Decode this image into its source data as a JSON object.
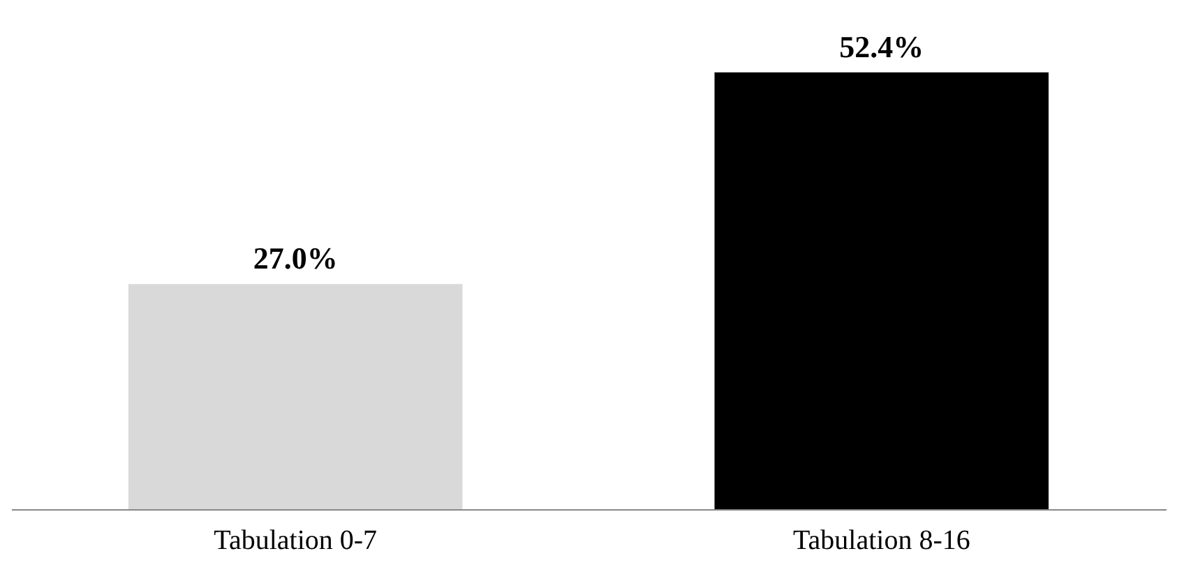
{
  "chart_data": {
    "type": "bar",
    "categories": [
      "Tabulation 0-7",
      "Tabulation 8-16"
    ],
    "values": [
      27.0,
      52.4
    ],
    "colors": [
      "#d9d9d9",
      "#000000"
    ],
    "value_labels": [
      "27.0%",
      "52.4%"
    ],
    "tick_labels": "x"
  }
}
